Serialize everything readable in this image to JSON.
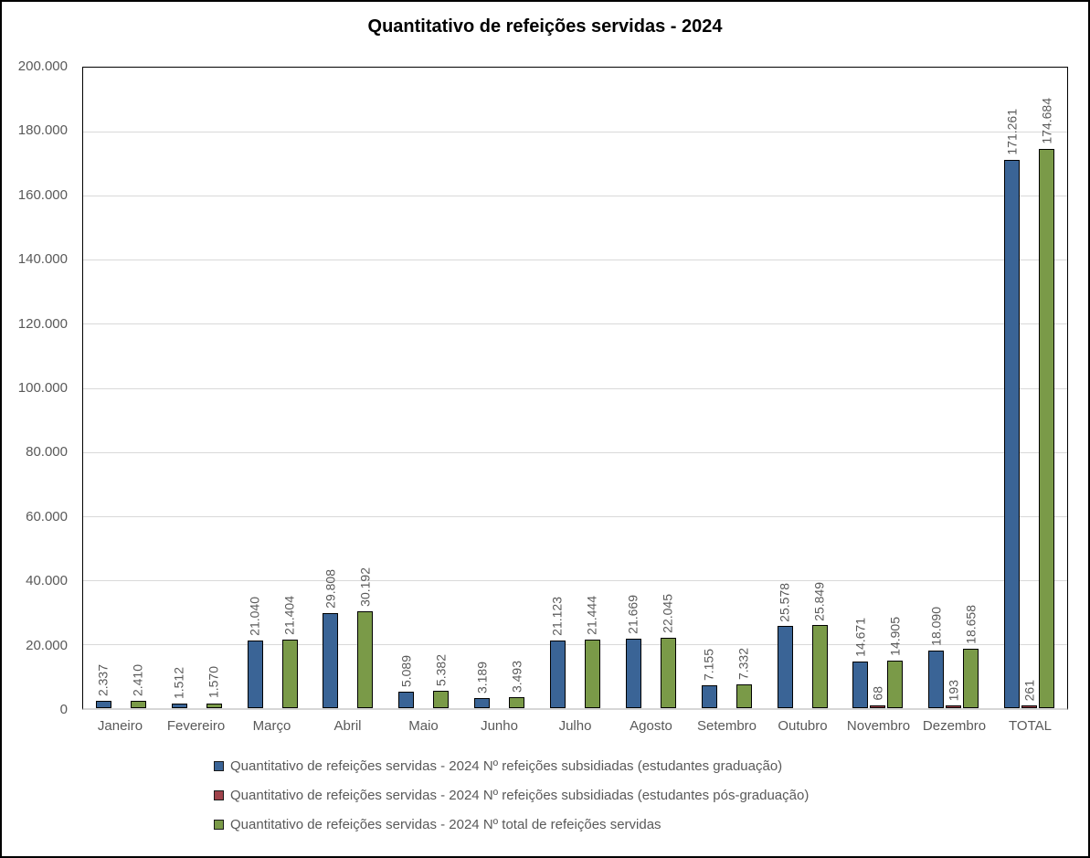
{
  "title": "Quantitativo de refeições servidas - 2024",
  "colors": {
    "series_graduacao": "#3a6496",
    "series_pos_graduacao": "#9f434b",
    "series_total": "#7a9a48",
    "bar_border": "#000000",
    "gridline": "#d9d9d9",
    "axis_text": "#595959",
    "title_text": "#000000",
    "frame_border": "#000000"
  },
  "chart_data": {
    "type": "bar",
    "title": "Quantitativo de refeições servidas - 2024",
    "categories": [
      "Janeiro",
      "Fevereiro",
      "Março",
      "Abril",
      "Maio",
      "Junho",
      "Julho",
      "Agosto",
      "Setembro",
      "Outubro",
      "Novembro",
      "Dezembro",
      "TOTAL"
    ],
    "series": [
      {
        "name": "Quantitativo de refeições servidas - 2024 Nº refeições subsidiadas (estudantes graduação)",
        "color": "#3a6496",
        "values": [
          2337,
          1512,
          21040,
          29808,
          5089,
          3189,
          21123,
          21669,
          7155,
          25578,
          14671,
          18090,
          171261
        ]
      },
      {
        "name": "Quantitativo de refeições servidas - 2024 Nº refeições subsidiadas (estudantes pós-graduação)",
        "color": "#9f434b",
        "values": [
          0,
          0,
          0,
          0,
          0,
          0,
          0,
          0,
          0,
          0,
          68,
          193,
          261
        ]
      },
      {
        "name": "Quantitativo de refeições servidas - 2024 Nº total de refeições servidas",
        "color": "#7a9a48",
        "values": [
          2410,
          1570,
          21404,
          30192,
          5382,
          3493,
          21444,
          22045,
          7332,
          25849,
          14905,
          18658,
          174684
        ]
      }
    ],
    "xlabel": "",
    "ylabel": "",
    "ylim": [
      0,
      200000
    ],
    "y_step": 20000,
    "y_tick_labels": [
      "0",
      "20.000",
      "40.000",
      "60.000",
      "80.000",
      "100.000",
      "120.000",
      "140.000",
      "160.000",
      "180.000",
      "200.000"
    ],
    "grid": true,
    "legend_position": "bottom",
    "data_label_rotation": 90,
    "number_format": "thousands-dot"
  }
}
